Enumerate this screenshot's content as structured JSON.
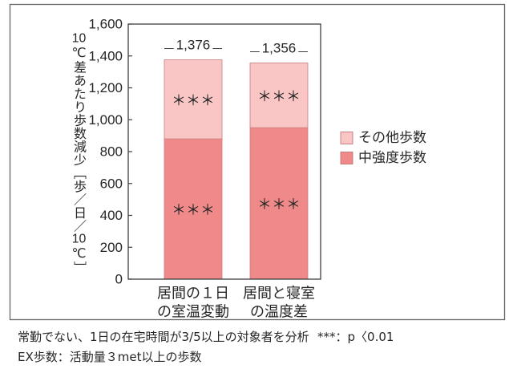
{
  "chart_data": {
    "type": "bar",
    "stacked": true,
    "categories": [
      [
        "居間の１日",
        "の室温変動"
      ],
      [
        "居間と寝室",
        "の温度差"
      ]
    ],
    "series": [
      {
        "name": "中強度歩数",
        "values": [
          880,
          950
        ],
        "color": "#f08a8a",
        "annotations": [
          "＊＊＊",
          "＊＊＊"
        ]
      },
      {
        "name": "その他歩数",
        "values": [
          496,
          406
        ],
        "color": "#f9c5c5",
        "annotations": [
          "＊＊＊",
          "＊＊＊"
        ]
      }
    ],
    "totals": [
      1376,
      1356
    ],
    "data_labels": [
      "1,376",
      "1,356"
    ],
    "ylabel": "10℃差あたり歩数減少［歩／日／10℃］",
    "ylim": [
      0,
      1600
    ],
    "yticks": [
      0,
      200,
      400,
      600,
      800,
      1000,
      1200,
      1400,
      1600
    ],
    "ytick_labels": [
      "0",
      "200",
      "400",
      "600",
      "800",
      "1,000",
      "1,200",
      "1,400",
      "1,600"
    ],
    "grid": false,
    "legend": "right"
  },
  "notes": {
    "sample": "常勤でない、1日の在宅時間が3/5以上の対象者を分析",
    "significance": "***：p〈0.01",
    "definition": "EX歩数：活動量３met以上の歩数"
  }
}
